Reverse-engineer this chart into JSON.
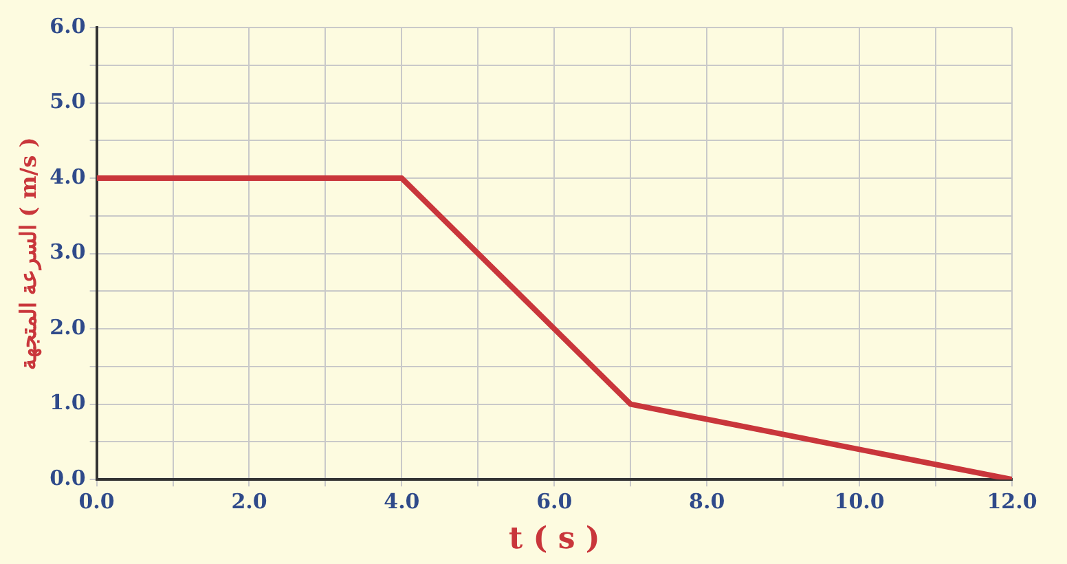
{
  "chart_data": {
    "type": "line",
    "xlabel": "t ( s )",
    "ylabel": "السرعة المتجهة ( m/s )",
    "x": [
      0,
      4,
      7,
      12
    ],
    "series": [
      {
        "color": "#c9363b",
        "values": [
          4,
          4,
          1,
          0
        ]
      }
    ],
    "xlim": [
      0,
      12
    ],
    "ylim": [
      0,
      6
    ],
    "xticks": [
      {
        "value": 0,
        "label": "0.0"
      },
      {
        "value": 1,
        "label": null
      },
      {
        "value": 2,
        "label": "2.0"
      },
      {
        "value": 3,
        "label": null
      },
      {
        "value": 4,
        "label": "4.0"
      },
      {
        "value": 5,
        "label": null
      },
      {
        "value": 6,
        "label": "6.0"
      },
      {
        "value": 7,
        "label": null
      },
      {
        "value": 8,
        "label": "8.0"
      },
      {
        "value": 9,
        "label": null
      },
      {
        "value": 10,
        "label": "10.0"
      },
      {
        "value": 11,
        "label": null
      },
      {
        "value": 12,
        "label": "12.0"
      }
    ],
    "yticks": [
      {
        "value": 0,
        "label": "0.0"
      },
      {
        "value": 0.5,
        "label": null
      },
      {
        "value": 1,
        "label": "1.0"
      },
      {
        "value": 1.5,
        "label": null
      },
      {
        "value": 2,
        "label": "2.0"
      },
      {
        "value": 2.5,
        "label": null
      },
      {
        "value": 3,
        "label": "3.0"
      },
      {
        "value": 3.5,
        "label": null
      },
      {
        "value": 4,
        "label": "4.0"
      },
      {
        "value": 4.5,
        "label": null
      },
      {
        "value": 5,
        "label": "5.0"
      },
      {
        "value": 5.5,
        "label": null
      },
      {
        "value": 6,
        "label": "6.0"
      }
    ],
    "grid": true,
    "marker": "none",
    "line_style": "solid"
  }
}
